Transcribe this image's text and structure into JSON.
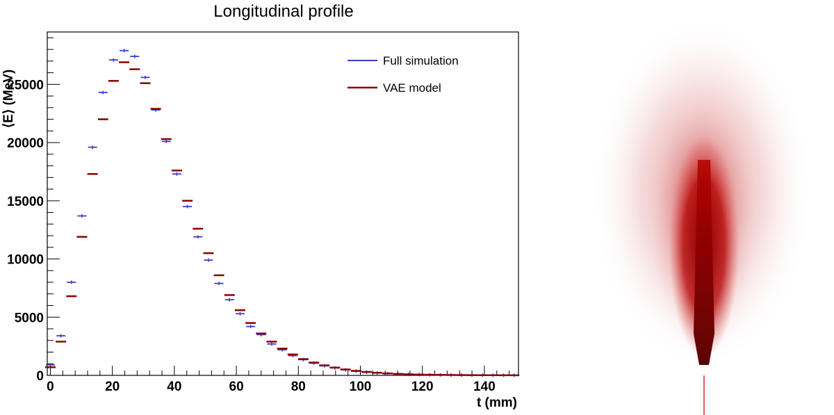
{
  "chart_data": {
    "type": "scatter",
    "title": "Longitudinal profile",
    "xlabel": "t (mm)",
    "ylabel": "⟨E⟩ (MeV)",
    "xlim": [
      -1,
      151
    ],
    "ylim": [
      0,
      29500
    ],
    "x_ticks": [
      0,
      20,
      40,
      60,
      80,
      100,
      120,
      140
    ],
    "y_ticks": [
      0,
      5000,
      10000,
      15000,
      20000,
      25000
    ],
    "legend_position": "top-right",
    "x": [
      0.0,
      3.4,
      6.8,
      10.2,
      13.6,
      17.0,
      20.4,
      23.8,
      27.2,
      30.6,
      34.0,
      37.4,
      40.8,
      44.2,
      47.6,
      51.0,
      54.4,
      57.8,
      61.2,
      64.6,
      68.0,
      71.4,
      74.8,
      78.2,
      81.6,
      85.0,
      88.4,
      91.8,
      95.2,
      98.6,
      102.0,
      105.4,
      108.8,
      112.2,
      115.6,
      119.0,
      122.4,
      125.8,
      129.2,
      132.6,
      136.0,
      139.4,
      142.8,
      146.2,
      149.6
    ],
    "series": [
      {
        "name": "Full simulation",
        "color": "#3b3bd4",
        "marker": "point-with-xerror",
        "values": [
          900,
          3400,
          8000,
          13700,
          19600,
          24300,
          27100,
          27900,
          27400,
          25600,
          22800,
          20100,
          17300,
          14500,
          11900,
          9900,
          7900,
          6500,
          5300,
          4200,
          3500,
          2700,
          2200,
          1700,
          1350,
          1050,
          820,
          640,
          480,
          360,
          270,
          200,
          150,
          110,
          85,
          65,
          50,
          40,
          32,
          26,
          20,
          16,
          13,
          10,
          8
        ]
      },
      {
        "name": "VAE model",
        "color": "#8b0000",
        "marker": "horizontal-bar",
        "values": [
          700,
          2900,
          6800,
          11900,
          17300,
          22000,
          25300,
          26900,
          26300,
          25100,
          22900,
          20300,
          17600,
          15000,
          12600,
          10500,
          8600,
          6900,
          5600,
          4500,
          3600,
          2900,
          2300,
          1800,
          1400,
          1100,
          860,
          670,
          510,
          390,
          300,
          225,
          170,
          125,
          95,
          72,
          55,
          44,
          35,
          28,
          22,
          17,
          14,
          11,
          9
        ]
      }
    ],
    "shower_image": {
      "colormap": "white-to-dark-red",
      "description_label": ""
    }
  }
}
